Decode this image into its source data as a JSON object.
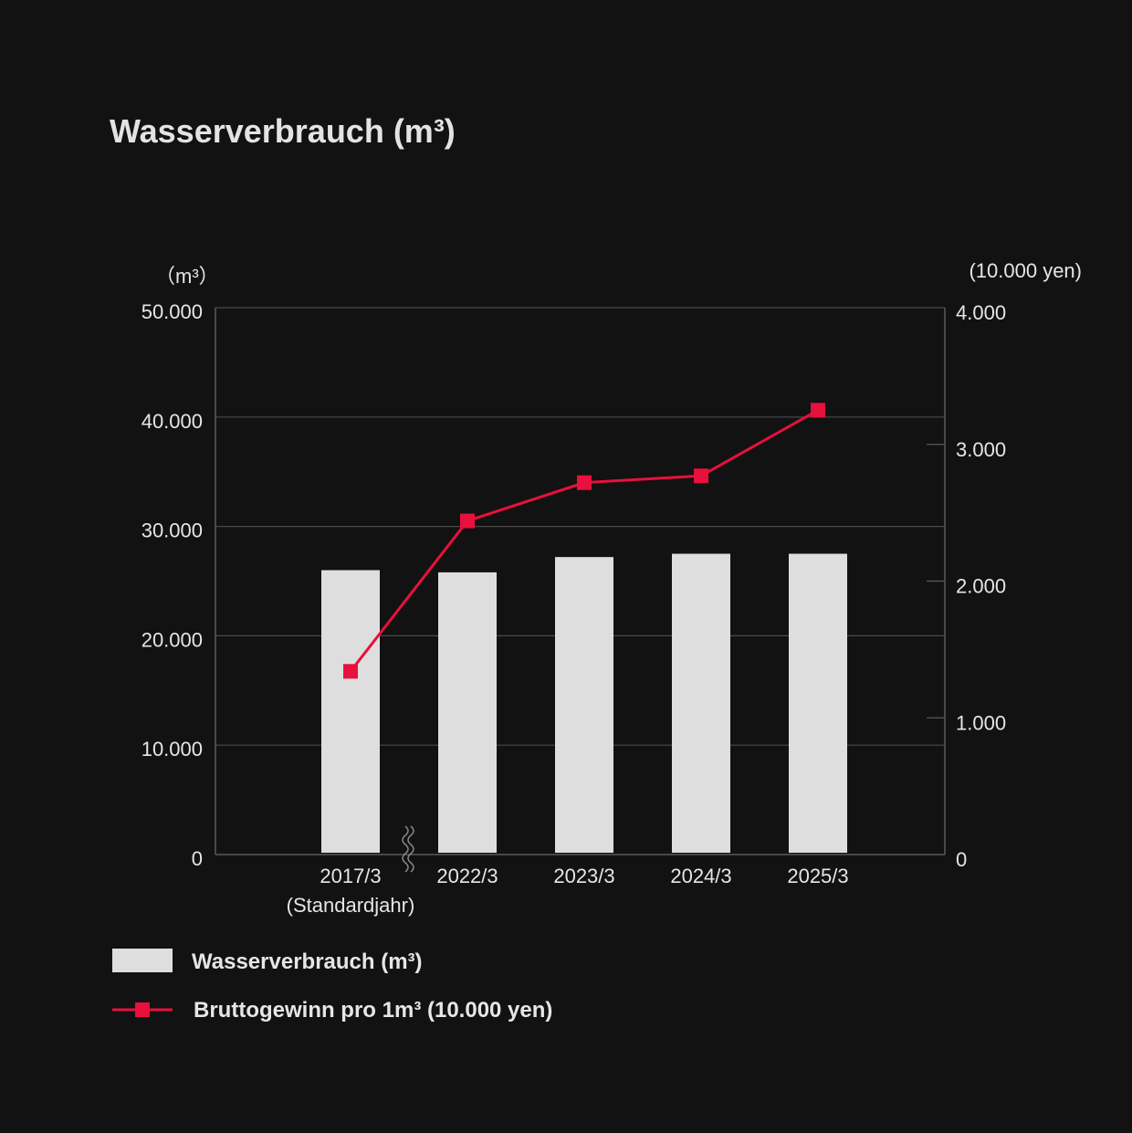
{
  "chart_data": {
    "type": "bar",
    "title": "Wasserverbrauch (m³)",
    "categories": [
      "2017/3",
      "2022/3",
      "2023/3",
      "2024/3",
      "2025/3"
    ],
    "category_sublabels": [
      "(Standardjahr)",
      "",
      "",
      "",
      ""
    ],
    "left_axis": {
      "unit_label": "（m³）",
      "ylim": [
        0,
        50000
      ],
      "ticks": [
        0,
        10000,
        20000,
        30000,
        40000,
        50000
      ],
      "tick_labels": [
        "0",
        "10.000",
        "20.000",
        "30.000",
        "40.000",
        "50.000"
      ]
    },
    "right_axis": {
      "unit_label": "(10.000 yen)",
      "ylim": [
        0,
        4000
      ],
      "ticks": [
        0,
        1000,
        2000,
        3000,
        4000
      ],
      "tick_labels": [
        "0",
        "1.000",
        "2.000",
        "3.000",
        "4.000"
      ]
    },
    "series": [
      {
        "name": "Wasserverbrauch (m³)",
        "type": "bar",
        "axis": "left",
        "color": "#dedede",
        "values": [
          26000,
          25800,
          27200,
          27500,
          27500
        ]
      },
      {
        "name": "Bruttogewinn pro 1m³ (10.000 yen)",
        "type": "line",
        "axis": "right",
        "color": "#e8103c",
        "marker": "square",
        "values": [
          1340,
          2440,
          2720,
          2770,
          3250
        ]
      }
    ],
    "axis_break_between": [
      "2017/3",
      "2022/3"
    ],
    "grid": true,
    "legend_position": "bottom-left"
  }
}
